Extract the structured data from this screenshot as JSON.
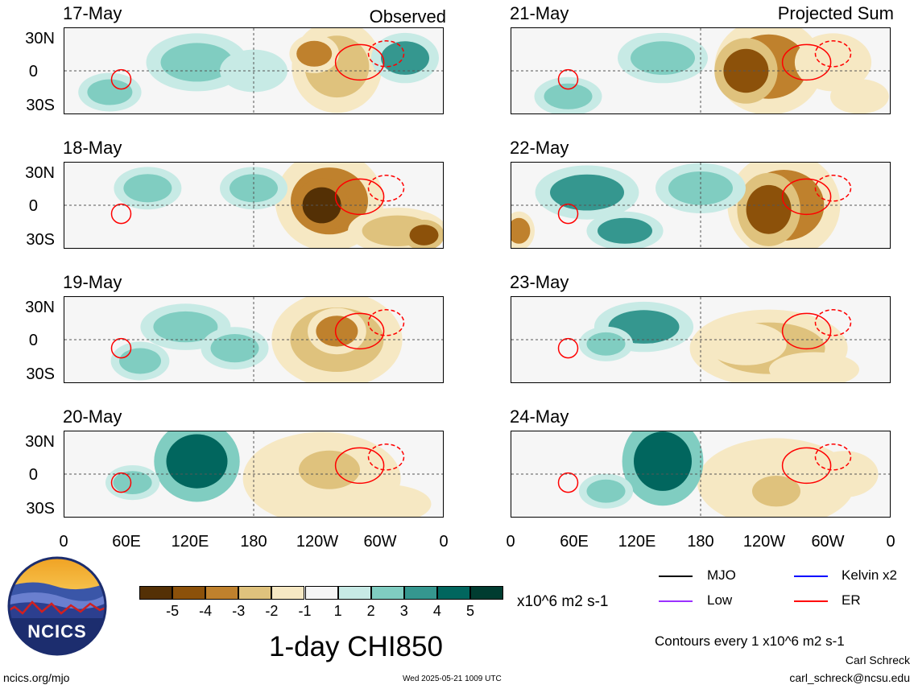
{
  "panels": {
    "left_header": "Observed",
    "right_header": "Projected Sum",
    "observed_dates": [
      "17-May",
      "18-May",
      "19-May",
      "20-May"
    ],
    "projected_dates": [
      "21-May",
      "22-May",
      "23-May",
      "24-May"
    ]
  },
  "axes": {
    "lat_ticks": [
      "30N",
      "0",
      "30S"
    ],
    "lon_ticks": [
      "0",
      "60E",
      "120E",
      "180",
      "120W",
      "60W",
      "0"
    ]
  },
  "colorbar": {
    "ticks": [
      "-5",
      "-4",
      "-3",
      "-2",
      "-1",
      "1",
      "2",
      "3",
      "4",
      "5"
    ],
    "colors": [
      "#543005",
      "#8c510a",
      "#bf812d",
      "#dfc27d",
      "#f6e8c3",
      "#f5f5f5",
      "#c7eae5",
      "#80cdc1",
      "#35978f",
      "#01665e",
      "#003c30"
    ],
    "units": "x10^6 m2 s-1"
  },
  "legend": {
    "items": [
      {
        "label": "MJO",
        "color": "#000000"
      },
      {
        "label": "Kelvin x2",
        "color": "#0000ff"
      },
      {
        "label": "Low",
        "color": "#9b30ff"
      },
      {
        "label": "ER",
        "color": "#ff0000"
      }
    ],
    "contours_note": "Contours every 1 x10^6 m2 s-1"
  },
  "title": "1-day CHI850",
  "logo_text": "NCICS",
  "footer": {
    "left": "ncics.org/mjo",
    "center": "Wed 2025-05-21 1009 UTC",
    "author": "Carl Schreck",
    "email": "carl_schreck@ncsu.edu"
  },
  "chart_data": {
    "type": "heatmap",
    "title": "1-day CHI850",
    "units": "x10^6 m2 s-1",
    "x_range": [
      "0",
      "0"
    ],
    "y_range": [
      "30S",
      "30N"
    ],
    "levels": [
      -5,
      -4,
      -3,
      -2,
      -1,
      1,
      2,
      3,
      4,
      5
    ],
    "series": [
      {
        "name": "MJO",
        "color": "#000000"
      },
      {
        "name": "Kelvin x2",
        "color": "#0000ff"
      },
      {
        "name": "Low",
        "color": "#9b30ff"
      },
      {
        "name": "ER",
        "color": "#ff0000"
      }
    ]
  }
}
